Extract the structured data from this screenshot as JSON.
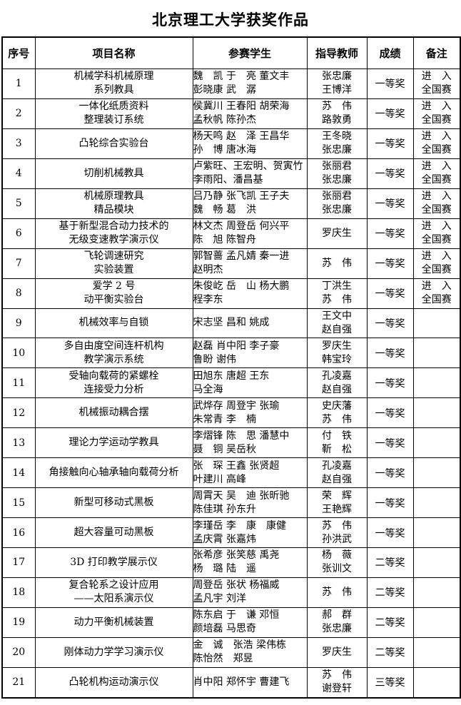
{
  "title": "北京理工大学获奖作品",
  "table": {
    "headers": [
      "序号",
      "项目名称",
      "参赛学生",
      "指导教师",
      "成绩",
      "备注"
    ],
    "rows": [
      {
        "no": "1",
        "project": [
          "机械学科机械原理",
          "系列教具"
        ],
        "students": [
          "魏　凯 于　亮 董文丰",
          "彭晓康 武　潺"
        ],
        "teachers": [
          "张忠廉",
          "王博洋"
        ],
        "award": "一等奖",
        "note": [
          "进　入",
          "全国赛"
        ]
      },
      {
        "no": "2",
        "project": [
          "一体化纸质资料",
          "整理装订系统"
        ],
        "students": [
          "侯冀川 王春阳 胡荣海",
          "孟秋帆 陈孙杰"
        ],
        "teachers": [
          "苏　伟",
          "路敦勇"
        ],
        "award": "一等奖",
        "note": [
          "进　入",
          "全国赛"
        ]
      },
      {
        "no": "3",
        "project": [
          "凸轮综合实验台"
        ],
        "students": [
          "杨天鸣 赵　泽 王昌华",
          "孙　博 唐冰海"
        ],
        "teachers": [
          "王冬晓",
          "张忠廉"
        ],
        "award": "一等奖",
        "note": [
          "进　入",
          "全国赛"
        ]
      },
      {
        "no": "4",
        "project": [
          "切削机械教具"
        ],
        "students": [
          "卢紫旺、王宏明、贺寅竹",
          "李雨阳、潘昌基"
        ],
        "teachers": [
          "张丽君",
          "张忠廉"
        ],
        "award": "一等奖",
        "note": [
          "进　入",
          "全国赛"
        ]
      },
      {
        "no": "5",
        "project": [
          "机械原理教具",
          "精品模块"
        ],
        "students": [
          "吕乃静 张飞凯 王子夫",
          "魏　畅 葛　洪"
        ],
        "teachers": [
          "张丽君",
          "张忠廉"
        ],
        "award": "一等奖",
        "note": [
          "进　入",
          "全国赛"
        ]
      },
      {
        "no": "6",
        "project": [
          "基于新型混合动力技术的",
          "无级变速教学演示仪"
        ],
        "students": [
          "林文杰 周登岳 何兴平",
          "陈　旭 陈智舟"
        ],
        "teachers": [
          "罗庆生"
        ],
        "award": "一等奖",
        "note": [
          "进　入",
          "全国赛"
        ]
      },
      {
        "no": "7",
        "project": [
          "飞轮调速研究",
          "实验装置"
        ],
        "students": [
          "郭智蔷 孟凡婧 秦一进",
          "赵明杰"
        ],
        "teachers": [
          "苏　伟"
        ],
        "award": "一等奖",
        "note": [
          "进　入",
          "全国赛"
        ]
      },
      {
        "no": "8",
        "project": [
          "爱学 2 号",
          "动平衡实验台"
        ],
        "students": [
          "朱俊屹 岳　山 杨大鹏",
          "程李东"
        ],
        "teachers": [
          "丁洪生",
          "苏　伟"
        ],
        "award": "一等奖",
        "note": [
          "进　入",
          "全国赛"
        ]
      },
      {
        "no": "9",
        "project": [
          "机械效率与自锁"
        ],
        "students": [
          "宋志坚 昌和 姚成"
        ],
        "teachers": [
          "王文中",
          "赵自强"
        ],
        "award": "一等奖",
        "note": []
      },
      {
        "no": "10",
        "project": [
          "多自由度空间连杆机构",
          "教学演示系统"
        ],
        "students": [
          "赵磊 肖中阳 李子豪",
          "鲁盼 谢伟"
        ],
        "teachers": [
          "罗庆生",
          "韩宝玲"
        ],
        "award": "一等奖",
        "note": []
      },
      {
        "no": "11",
        "project": [
          "受轴向载荷的紧螺栓",
          "连接受力分析"
        ],
        "students": [
          "田旭东 唐超 王东",
          "马全海"
        ],
        "teachers": [
          "孔凌嘉",
          "赵自强"
        ],
        "award": "一等奖",
        "note": []
      },
      {
        "no": "12",
        "project": [
          "机械振动耦合摆"
        ],
        "students": [
          "武烨存 周登宇 张瑜",
          "朱常青 李　楠"
        ],
        "teachers": [
          "史庆藩",
          "苏　伟"
        ],
        "award": "一等奖",
        "note": []
      },
      {
        "no": "13",
        "project": [
          "理论力学运动学教具"
        ],
        "students": [
          "李熠锋 陈　思 潘慧中",
          "聂　铜 吴岳秋"
        ],
        "teachers": [
          "付　铁",
          "靳　松"
        ],
        "award": "一等奖",
        "note": []
      },
      {
        "no": "14",
        "project": [
          "角接触向心轴承轴向载荷分析"
        ],
        "students": [
          "张　琛 王鑫 张贤超",
          "叶建川 高峰"
        ],
        "teachers": [
          "孔凌嘉",
          "赵自强"
        ],
        "award": "一等奖",
        "note": []
      },
      {
        "no": "15",
        "project": [
          "新型可移动式黑板"
        ],
        "students": [
          "周霄天 吴　迪 张昕驰",
          "陈佳琪 孙东升"
        ],
        "teachers": [
          "荣　辉",
          "王艳辉"
        ],
        "award": "一等奖",
        "note": []
      },
      {
        "no": "16",
        "project": [
          "超大容量可动黑板"
        ],
        "students": [
          "李瑾岳 李　康　康健",
          "孟庆霄 张嘉炜"
        ],
        "teachers": [
          "苏　伟",
          "孙洪武"
        ],
        "award": "一等奖",
        "note": []
      },
      {
        "no": "17",
        "project": [
          "3D 打印教学展示仪"
        ],
        "students": [
          "张希彦 张笑慈 禹尧",
          "杨　璐 陆　遥"
        ],
        "teachers": [
          "杨　薇",
          "张训文"
        ],
        "award": "二等奖",
        "note": []
      },
      {
        "no": "18",
        "project": [
          "复合轮系之设计应用",
          "——太阳系演示仪"
        ],
        "students": [
          "周登岳 张状 杨福威",
          "孟凡宇 刘洋"
        ],
        "teachers": [
          "苏　伟"
        ],
        "award": "二等奖",
        "note": []
      },
      {
        "no": "19",
        "project": [
          "动力平衡机械装置"
        ],
        "students": [
          "陈东启 于　谦 邓恒",
          "颜培磊 马思奇"
        ],
        "teachers": [
          "郝　群",
          "张忠廉"
        ],
        "award": "二等奖",
        "note": []
      },
      {
        "no": "20",
        "project": [
          "刚体动力学学习演示仪"
        ],
        "students": [
          "金　诚　张浩 梁伟栋",
          "陈怡然　郑昱"
        ],
        "teachers": [
          "罗庆生"
        ],
        "award": "二等奖",
        "note": []
      },
      {
        "no": "21",
        "project": [
          "凸轮机构运动演示仪"
        ],
        "students": [
          "肖中阳 郑怀宇 曹建飞"
        ],
        "teachers": [
          "苏　伟",
          "谢登轩"
        ],
        "award": "三等奖",
        "note": []
      }
    ]
  }
}
